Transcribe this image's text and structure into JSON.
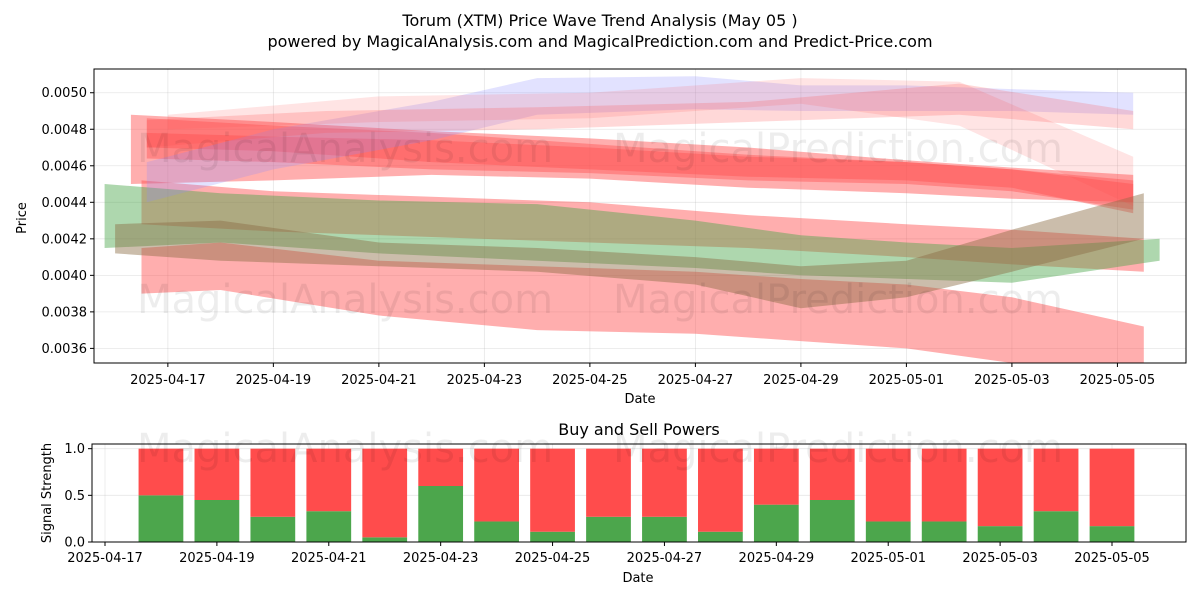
{
  "title": "Torum (XTM) Price Wave Trend Analysis (May 05 )",
  "subtitle": "powered by MagicalAnalysis.com and MagicalPrediction.com and Predict-Price.com",
  "watermarks": [
    "MagicalAnalysis.com",
    "MagicalPrediction.com"
  ],
  "colors": {
    "bull": "#4ca64c",
    "bear": "#ff4c4c",
    "wave_red": "#ff4c4c",
    "wave_green": "#4ca64c",
    "wave_brown": "#8b6d45",
    "wave_blue": "#8c8cff"
  },
  "chart_data": [
    {
      "type": "area",
      "title": "",
      "xlabel": "Date",
      "ylabel": "Price",
      "xlim": [
        "2025-04-15.6",
        "2025-05-06.3"
      ],
      "ylim": [
        0.00352,
        0.00513
      ],
      "x_ticks": [
        "2025-04-17",
        "2025-04-19",
        "2025-04-21",
        "2025-04-23",
        "2025-04-25",
        "2025-04-27",
        "2025-04-29",
        "2025-05-01",
        "2025-05-03",
        "2025-05-05"
      ],
      "y_ticks": [
        "0.0036",
        "0.0038",
        "0.0040",
        "0.0042",
        "0.0044",
        "0.0046",
        "0.0048",
        "0.0050"
      ],
      "grid": true,
      "series": [
        {
          "color": "red",
          "opacity": 0.45,
          "x": [
            "2025-04-16.3",
            "2025-04-19",
            "2025-04-22",
            "2025-04-25",
            "2025-04-28",
            "2025-05-01",
            "2025-05-03",
            "2025-05-05.3"
          ],
          "upper": [
            0.00488,
            0.00484,
            0.00479,
            0.00475,
            0.0047,
            0.00463,
            0.00459,
            0.00455
          ],
          "lower": [
            0.0045,
            0.00452,
            0.00455,
            0.00453,
            0.00448,
            0.00445,
            0.00442,
            0.0044
          ]
        },
        {
          "color": "red",
          "opacity": 0.4,
          "x": [
            "2025-04-16.6",
            "2025-04-19",
            "2025-04-22",
            "2025-04-25",
            "2025-04-28",
            "2025-05-01",
            "2025-05-03",
            "2025-05-05.3"
          ],
          "upper": [
            0.00486,
            0.00482,
            0.00478,
            0.00472,
            0.00466,
            0.00462,
            0.00458,
            0.0045
          ],
          "lower": [
            0.0047,
            0.00468,
            0.00462,
            0.00458,
            0.00454,
            0.00452,
            0.00448,
            0.00434
          ]
        },
        {
          "color": "red",
          "opacity": 0.4,
          "x": [
            "2025-04-16.6",
            "2025-04-19",
            "2025-04-22",
            "2025-04-25",
            "2025-04-28",
            "2025-05-01",
            "2025-05-03",
            "2025-05-05.3"
          ],
          "upper": [
            0.00478,
            0.00476,
            0.00474,
            0.0047,
            0.00465,
            0.00462,
            0.00458,
            0.00452
          ],
          "lower": [
            0.00464,
            0.00462,
            0.00458,
            0.00456,
            0.00452,
            0.0045,
            0.00446,
            0.00436
          ]
        },
        {
          "color": "red",
          "opacity": 0.45,
          "x": [
            "2025-04-16.5",
            "2025-04-18",
            "2025-04-21",
            "2025-04-24",
            "2025-04-27",
            "2025-04-29",
            "2025-05-01",
            "2025-05-03",
            "2025-05-05.5"
          ],
          "upper": [
            0.00415,
            0.00418,
            0.00408,
            0.00405,
            0.00402,
            0.00398,
            0.00395,
            0.00388,
            0.00372
          ],
          "lower": [
            0.0039,
            0.00392,
            0.00378,
            0.0037,
            0.00368,
            0.00364,
            0.0036,
            0.00352,
            0.00338
          ]
        },
        {
          "color": "red",
          "opacity": 0.45,
          "x": [
            "2025-04-16.5",
            "2025-04-19",
            "2025-04-22",
            "2025-04-25",
            "2025-04-28",
            "2025-05-01",
            "2025-05-03",
            "2025-05-05.5"
          ],
          "upper": [
            0.00452,
            0.00446,
            0.00443,
            0.0044,
            0.00433,
            0.00428,
            0.00425,
            0.0042
          ],
          "lower": [
            0.00428,
            0.00424,
            0.00421,
            0.00418,
            0.00415,
            0.0041,
            0.00406,
            0.00402
          ]
        },
        {
          "color": "green",
          "opacity": 0.45,
          "x": [
            "2025-04-15.8",
            "2025-04-18",
            "2025-04-21",
            "2025-04-24",
            "2025-04-27",
            "2025-04-29",
            "2025-05-01",
            "2025-05-03",
            "2025-05-05.8"
          ],
          "upper": [
            0.0045,
            0.00445,
            0.00441,
            0.00439,
            0.0043,
            0.00422,
            0.00418,
            0.00415,
            0.0042
          ],
          "lower": [
            0.00415,
            0.00418,
            0.00412,
            0.00408,
            0.00404,
            0.004,
            0.00398,
            0.00396,
            0.00408
          ]
        },
        {
          "color": "brown",
          "opacity": 0.45,
          "x": [
            "2025-04-16",
            "2025-04-18",
            "2025-04-21",
            "2025-04-24",
            "2025-04-27",
            "2025-04-29",
            "2025-05-01",
            "2025-05-03",
            "2025-05-05.5"
          ],
          "upper": [
            0.00428,
            0.0043,
            0.00418,
            0.00415,
            0.0041,
            0.00405,
            0.00408,
            0.00425,
            0.00445
          ],
          "lower": [
            0.00412,
            0.00408,
            0.00405,
            0.00402,
            0.00395,
            0.00382,
            0.00388,
            0.00402,
            0.0042
          ]
        },
        {
          "color": "blue",
          "opacity": 0.25,
          "x": [
            "2025-04-16.6",
            "2025-04-19",
            "2025-04-22",
            "2025-04-24",
            "2025-04-27",
            "2025-04-29",
            "2025-05-01",
            "2025-05-03",
            "2025-05-05.3"
          ],
          "upper": [
            0.00462,
            0.0048,
            0.00495,
            0.00508,
            0.00509,
            0.00504,
            0.00504,
            0.00502,
            0.005
          ],
          "lower": [
            0.0044,
            0.00458,
            0.00474,
            0.00488,
            0.00491,
            0.0049,
            0.0049,
            0.0049,
            0.00488
          ]
        },
        {
          "color": "red",
          "opacity": 0.22,
          "x": [
            "2025-04-16.6",
            "2025-04-20",
            "2025-04-24",
            "2025-04-28",
            "2025-05-02",
            "2025-05-05.3"
          ],
          "upper": [
            0.00485,
            0.0049,
            0.00492,
            0.00495,
            0.00505,
            0.0049
          ],
          "lower": [
            0.0047,
            0.00478,
            0.0048,
            0.00484,
            0.00488,
            0.0048
          ]
        },
        {
          "color": "red",
          "opacity": 0.15,
          "x": [
            "2025-04-17",
            "2025-04-21",
            "2025-04-25",
            "2025-04-29",
            "2025-05-02",
            "2025-05-05.3"
          ],
          "upper": [
            0.00488,
            0.00498,
            0.005,
            0.00508,
            0.00506,
            0.00465
          ],
          "lower": [
            0.0048,
            0.00484,
            0.00486,
            0.00494,
            0.00482,
            0.00438
          ]
        }
      ]
    },
    {
      "type": "bar",
      "title": "Buy and Sell Powers",
      "xlabel": "Date",
      "ylabel": "Signal Strength",
      "ylim": [
        0,
        1.05
      ],
      "x_ticks": [
        "2025-04-17",
        "2025-04-19",
        "2025-04-21",
        "2025-04-23",
        "2025-04-25",
        "2025-04-27",
        "2025-04-29",
        "2025-05-01",
        "2025-05-03",
        "2025-05-05"
      ],
      "y_ticks": [
        "0.0",
        "0.5",
        "1.0"
      ],
      "categories": [
        "2025-04-18",
        "2025-04-19",
        "2025-04-20",
        "2025-04-21",
        "2025-04-22",
        "2025-04-23",
        "2025-04-24",
        "2025-04-25",
        "2025-04-26",
        "2025-04-27",
        "2025-04-28",
        "2025-04-29",
        "2025-04-30",
        "2025-05-01",
        "2025-05-02",
        "2025-05-03",
        "2025-05-04",
        "2025-05-05"
      ],
      "series": [
        {
          "name": "Buy",
          "color": "green",
          "values": [
            0.5,
            0.45,
            0.27,
            0.33,
            0.05,
            0.6,
            0.22,
            0.11,
            0.27,
            0.27,
            0.11,
            0.4,
            0.45,
            0.22,
            0.22,
            0.17,
            0.33,
            0.17
          ]
        },
        {
          "name": "Sell",
          "color": "red",
          "values": [
            0.5,
            0.55,
            0.73,
            0.67,
            0.95,
            0.4,
            0.78,
            0.89,
            0.73,
            0.73,
            0.89,
            0.6,
            0.55,
            0.78,
            0.78,
            0.83,
            0.67,
            0.83
          ]
        }
      ]
    }
  ]
}
